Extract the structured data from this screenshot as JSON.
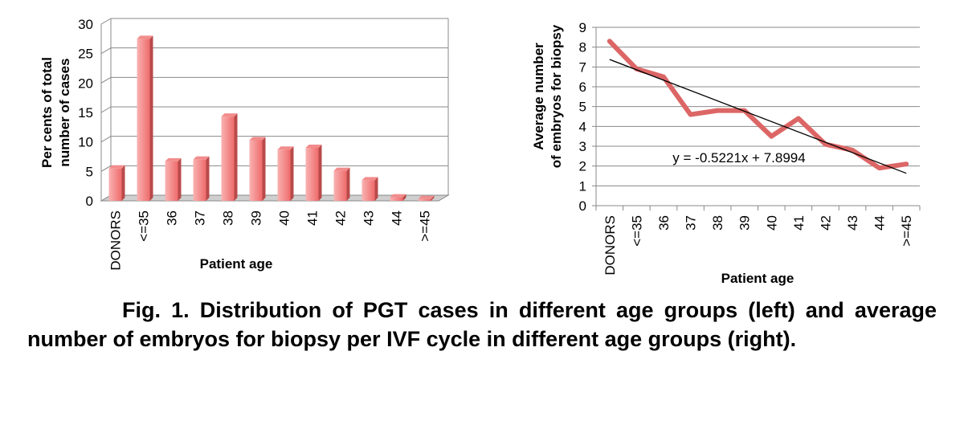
{
  "caption": "Fig. 1. Distribution of PGT cases in different age groups (left) and average number of embryos for biopsy per IVF cycle in different age groups (right).",
  "colors": {
    "bar_front": "#ef6b6b",
    "bar_light": "#f9b2b2",
    "bar_top": "#f28c8c",
    "line": "#dc6666",
    "trend": "#000000",
    "grid": "#888888"
  },
  "chart_data": [
    {
      "type": "bar",
      "categories": [
        "DONORS",
        "<=35",
        "36",
        "37",
        "38",
        "39",
        "40",
        "41",
        "42",
        "43",
        "44",
        ">=45"
      ],
      "values": [
        5.5,
        27.5,
        6.7,
        7.0,
        14.3,
        10.3,
        8.7,
        9.0,
        5.1,
        3.5,
        0.6,
        0.3
      ],
      "ylabel_lines": [
        "Per cents of total",
        "number of cases"
      ],
      "xlabel": "Patient age",
      "ylim": [
        0,
        30
      ],
      "yticks": [
        0,
        5,
        10,
        15,
        20,
        25,
        30
      ],
      "grid": true
    },
    {
      "type": "line",
      "categories": [
        "DONORS",
        "<=35",
        "36",
        "37",
        "38",
        "39",
        "40",
        "41",
        "42",
        "43",
        "44",
        ">=45"
      ],
      "values": [
        8.3,
        6.9,
        6.5,
        4.6,
        4.8,
        4.8,
        3.5,
        4.4,
        3.1,
        2.8,
        1.9,
        2.1
      ],
      "ylabel_lines": [
        "Average number",
        "of embryos for biopsy"
      ],
      "xlabel": "Patient age",
      "ylim": [
        0,
        9
      ],
      "yticks": [
        0,
        1,
        2,
        3,
        4,
        5,
        6,
        7,
        8,
        9
      ],
      "grid": true,
      "trendline": {
        "slope": -0.5221,
        "intercept": 7.8994,
        "label": "y = -0.5221x + 7.8994"
      }
    }
  ]
}
